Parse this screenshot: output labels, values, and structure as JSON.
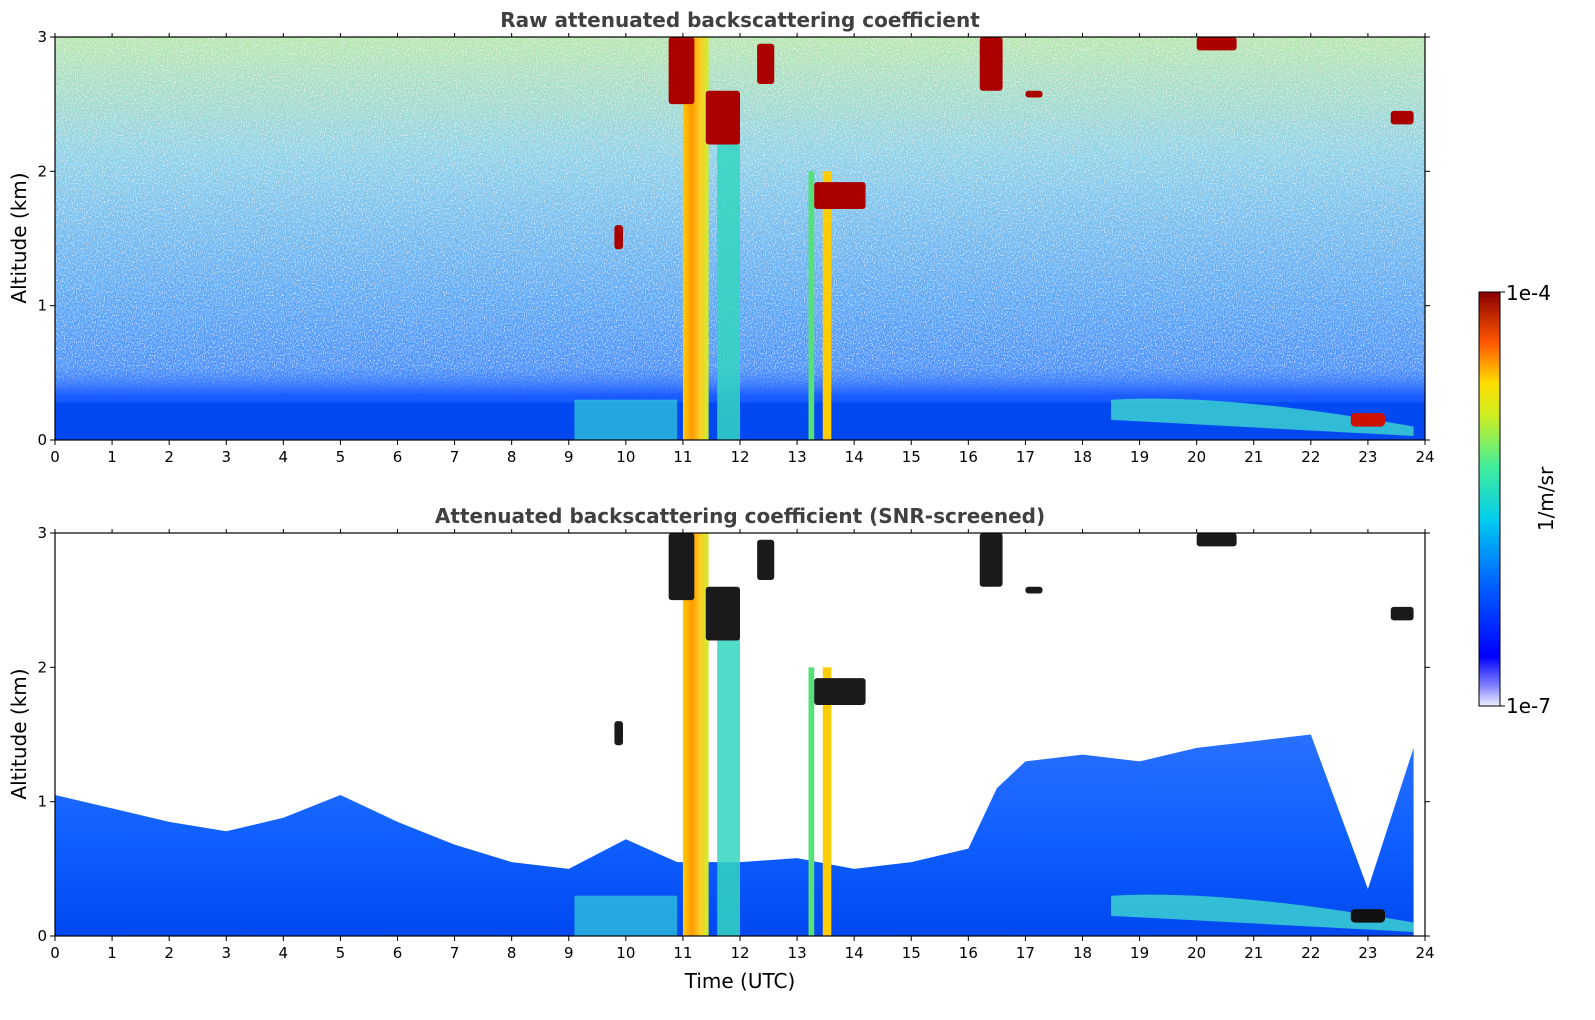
{
  "chart_data": [
    {
      "type": "heatmap",
      "title": "Raw attenuated backscattering coefficient",
      "xlabel": "",
      "ylabel": "Altitude (km)",
      "xlim": [
        0,
        24
      ],
      "ylim": [
        0,
        3
      ],
      "x_ticks": [
        "0",
        "1",
        "2",
        "3",
        "4",
        "5",
        "6",
        "7",
        "8",
        "9",
        "10",
        "11",
        "12",
        "13",
        "14",
        "15",
        "16",
        "17",
        "18",
        "19",
        "20",
        "21",
        "22",
        "23",
        "24"
      ],
      "y_ticks": [
        "0",
        "1",
        "2",
        "3"
      ],
      "screened": false,
      "features": [
        {
          "kind": "fog_layer",
          "x": [
            0,
            24
          ],
          "y": [
            0,
            0.55
          ]
        },
        {
          "kind": "thick_column",
          "x": [
            11.0,
            11.4
          ],
          "y": [
            0,
            3.0
          ]
        },
        {
          "kind": "column",
          "x": [
            11.6,
            12.0
          ],
          "y": [
            0,
            2.3
          ]
        },
        {
          "kind": "column",
          "x": [
            13.2,
            13.6
          ],
          "y": [
            0,
            2.0
          ]
        },
        {
          "kind": "cloud",
          "x": [
            13.2,
            14.2
          ],
          "y": [
            1.7,
            1.95
          ]
        },
        {
          "kind": "cloud",
          "x": [
            10.8,
            11.6
          ],
          "y": [
            2.4,
            3.0
          ]
        },
        {
          "kind": "cloud",
          "x": [
            9.8,
            9.9
          ],
          "y": [
            1.45,
            1.6
          ]
        },
        {
          "kind": "cloud",
          "x": [
            22.7,
            23.3
          ],
          "y": [
            0.1,
            0.2
          ]
        }
      ]
    },
    {
      "type": "heatmap",
      "title": "Attenuated backscattering coefficient (SNR-screened)",
      "xlabel": "Time (UTC)",
      "ylabel": "Altitude (km)",
      "xlim": [
        0,
        24
      ],
      "ylim": [
        0,
        3
      ],
      "x_ticks": [
        "0",
        "1",
        "2",
        "3",
        "4",
        "5",
        "6",
        "7",
        "8",
        "9",
        "10",
        "11",
        "12",
        "13",
        "14",
        "15",
        "16",
        "17",
        "18",
        "19",
        "20",
        "21",
        "22",
        "23",
        "24"
      ],
      "y_ticks": [
        "0",
        "1",
        "2",
        "3"
      ],
      "screened": true,
      "boundary_layer_top": [
        [
          0,
          1.05
        ],
        [
          1,
          0.95
        ],
        [
          2,
          0.85
        ],
        [
          3,
          0.78
        ],
        [
          4,
          0.88
        ],
        [
          5,
          1.05
        ],
        [
          6,
          0.85
        ],
        [
          7,
          0.68
        ],
        [
          8,
          0.55
        ],
        [
          9,
          0.5
        ],
        [
          10,
          0.72
        ],
        [
          10.9,
          0.55
        ],
        [
          12,
          0.55
        ],
        [
          13,
          0.58
        ],
        [
          14,
          0.5
        ],
        [
          15,
          0.55
        ],
        [
          16,
          0.65
        ],
        [
          16.5,
          1.1
        ],
        [
          17,
          1.3
        ],
        [
          18,
          1.35
        ],
        [
          19,
          1.3
        ],
        [
          20,
          1.4
        ],
        [
          21,
          1.45
        ],
        [
          22,
          1.5
        ],
        [
          23,
          0.35
        ],
        [
          23.8,
          1.4
        ]
      ]
    }
  ],
  "colorbar": {
    "max_label": "1e-4",
    "min_label": "1e-7",
    "unit": "1/m/sr",
    "colormap": "jet",
    "scale": "log"
  }
}
